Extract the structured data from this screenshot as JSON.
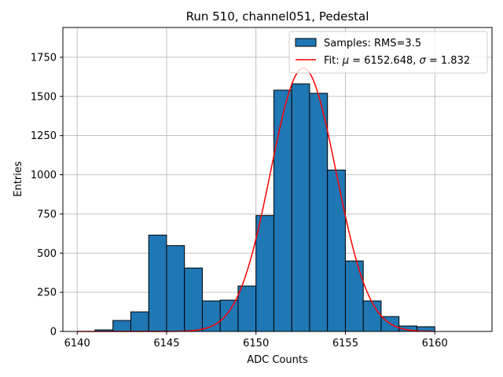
{
  "chart_data": {
    "type": "bar",
    "title": "Run 510, channel051, Pedestal",
    "xlabel": "ADC Counts",
    "ylabel": "Entries",
    "xlim": [
      6139.2,
      6163.2
    ],
    "ylim": [
      0,
      1940
    ],
    "grid": true,
    "x_ticks": [
      6140,
      6145,
      6150,
      6155,
      6160
    ],
    "y_ticks": [
      0,
      250,
      500,
      750,
      1000,
      1250,
      1500,
      1750
    ],
    "bin_edges": [
      6140,
      6141,
      6142,
      6143,
      6144,
      6145,
      6146,
      6147,
      6148,
      6149,
      6150,
      6151,
      6152,
      6153,
      6154,
      6155,
      6156,
      6157,
      6158,
      6159,
      6160
    ],
    "series": [
      {
        "name": "Samples: RMS=3.5",
        "kind": "histogram",
        "color": "#1f77b4",
        "edgecolor": "#000000",
        "values": [
          0,
          10,
          70,
          125,
          615,
          548,
          405,
          195,
          200,
          290,
          740,
          1540,
          1580,
          1520,
          1030,
          450,
          195,
          95,
          35,
          30
        ]
      },
      {
        "name": "Fit: μ = 6152.648, σ = 1.832",
        "kind": "gaussian",
        "color": "#ff0000",
        "mu": 6152.648,
        "sigma": 1.832,
        "amplitude": 1680,
        "x_range": [
          6140,
          6160
        ]
      }
    ],
    "legend": {
      "placement": "top-right",
      "samples_prefix": "Samples: RMS=3.5",
      "fit_prefix": "Fit: ",
      "mu_symbol": "μ",
      "mu_text": " = 6152.648, ",
      "sigma_symbol": "σ",
      "sigma_text": " = 1.832"
    }
  }
}
